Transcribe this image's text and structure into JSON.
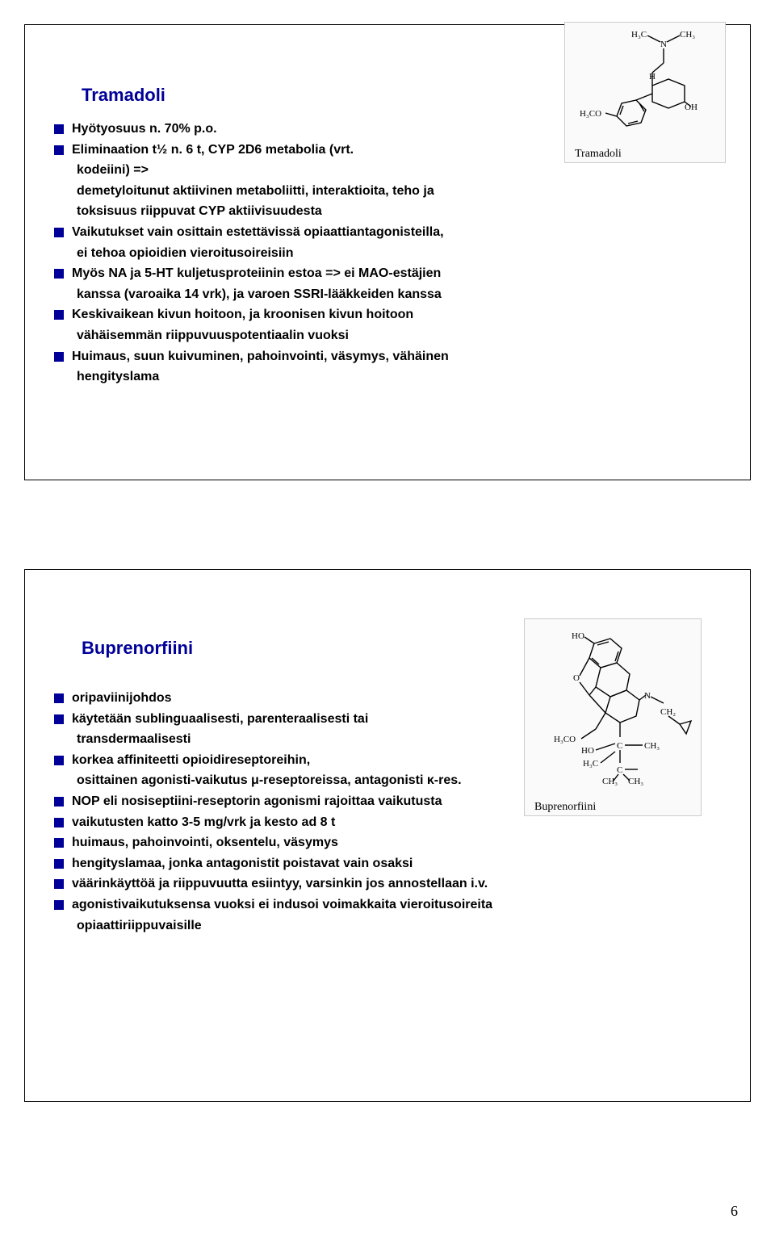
{
  "page_number": "6",
  "colors": {
    "title_color": "#000099",
    "bullet_color": "#000099",
    "text_color": "#000000",
    "border_color": "#000000",
    "struct_border": "#cccccc",
    "struct_bg": "#fafafa"
  },
  "typography": {
    "body_font": "Arial",
    "body_size_pt": 12,
    "body_weight": "bold",
    "title_size_pt": 16,
    "caption_font": "Times New Roman",
    "caption_size_pt": 10
  },
  "slide1": {
    "title": "Tramadoli",
    "structure_caption": "Tramadoli",
    "bullets": [
      {
        "text": "Hyötyosuus n. 70% p.o.",
        "continuation": []
      },
      {
        "text": "Eliminaation t½ n. 6 t, CYP 2D6 metabolia (vrt.",
        "continuation": [
          "kodeiini) =>",
          "demetyloitunut aktiivinen metaboliitti, interaktioita, teho ja",
          "toksisuus riippuvat CYP aktiivisuudesta"
        ]
      },
      {
        "text": "Vaikutukset vain osittain estettävissä opiaattiantagonisteilla,",
        "continuation": [
          "ei tehoa opioidien vieroitusoireisiin"
        ]
      },
      {
        "text": "Myös NA ja 5-HT kuljetusproteiinin estoa => ei MAO-estäjien",
        "continuation": [
          "kanssa (varoaika 14 vrk), ja varoen SSRI-lääkkeiden kanssa"
        ]
      },
      {
        "text": "Keskivaikean kivun hoitoon, ja kroonisen kivun hoitoon",
        "continuation": [
          "vähäisemmän riippuvuuspotentiaalin vuoksi"
        ]
      },
      {
        "text": "Huimaus, suun kuivuminen, pahoinvointi, väsymys, vähäinen",
        "continuation": [
          "hengityslama"
        ]
      }
    ]
  },
  "slide2": {
    "title": "Buprenorfiini",
    "structure_caption": "Buprenorfiini",
    "bullets": [
      {
        "text": "oripaviinijohdos",
        "continuation": []
      },
      {
        "text": "käytetään sublinguaalisesti, parenteraalisesti tai",
        "continuation": [
          "transdermaalisesti"
        ]
      },
      {
        "text": "korkea affiniteetti opioidireseptoreihin,",
        "continuation": [
          "osittainen agonisti-vaikutus μ-reseptoreissa, antagonisti κ-res."
        ]
      },
      {
        "text": "NOP eli nosiseptiini-reseptorin agonismi rajoittaa vaikutusta",
        "continuation": []
      },
      {
        "text": "vaikutusten katto 3-5 mg/vrk ja kesto ad 8 t",
        "continuation": []
      },
      {
        "text": "huimaus, pahoinvointi, oksentelu, väsymys",
        "continuation": []
      },
      {
        "text": "hengityslamaa, jonka antagonistit poistavat vain osaksi",
        "continuation": []
      },
      {
        "text": "väärinkäyttöä ja riippuvuutta esiintyy, varsinkin jos annostellaan i.v.",
        "continuation": []
      },
      {
        "text": "agonistivaikutuksensa vuoksi ei indusoi voimakkaita vieroitusoireita",
        "continuation": [
          "opiaattiriippuvaisille"
        ]
      }
    ]
  }
}
